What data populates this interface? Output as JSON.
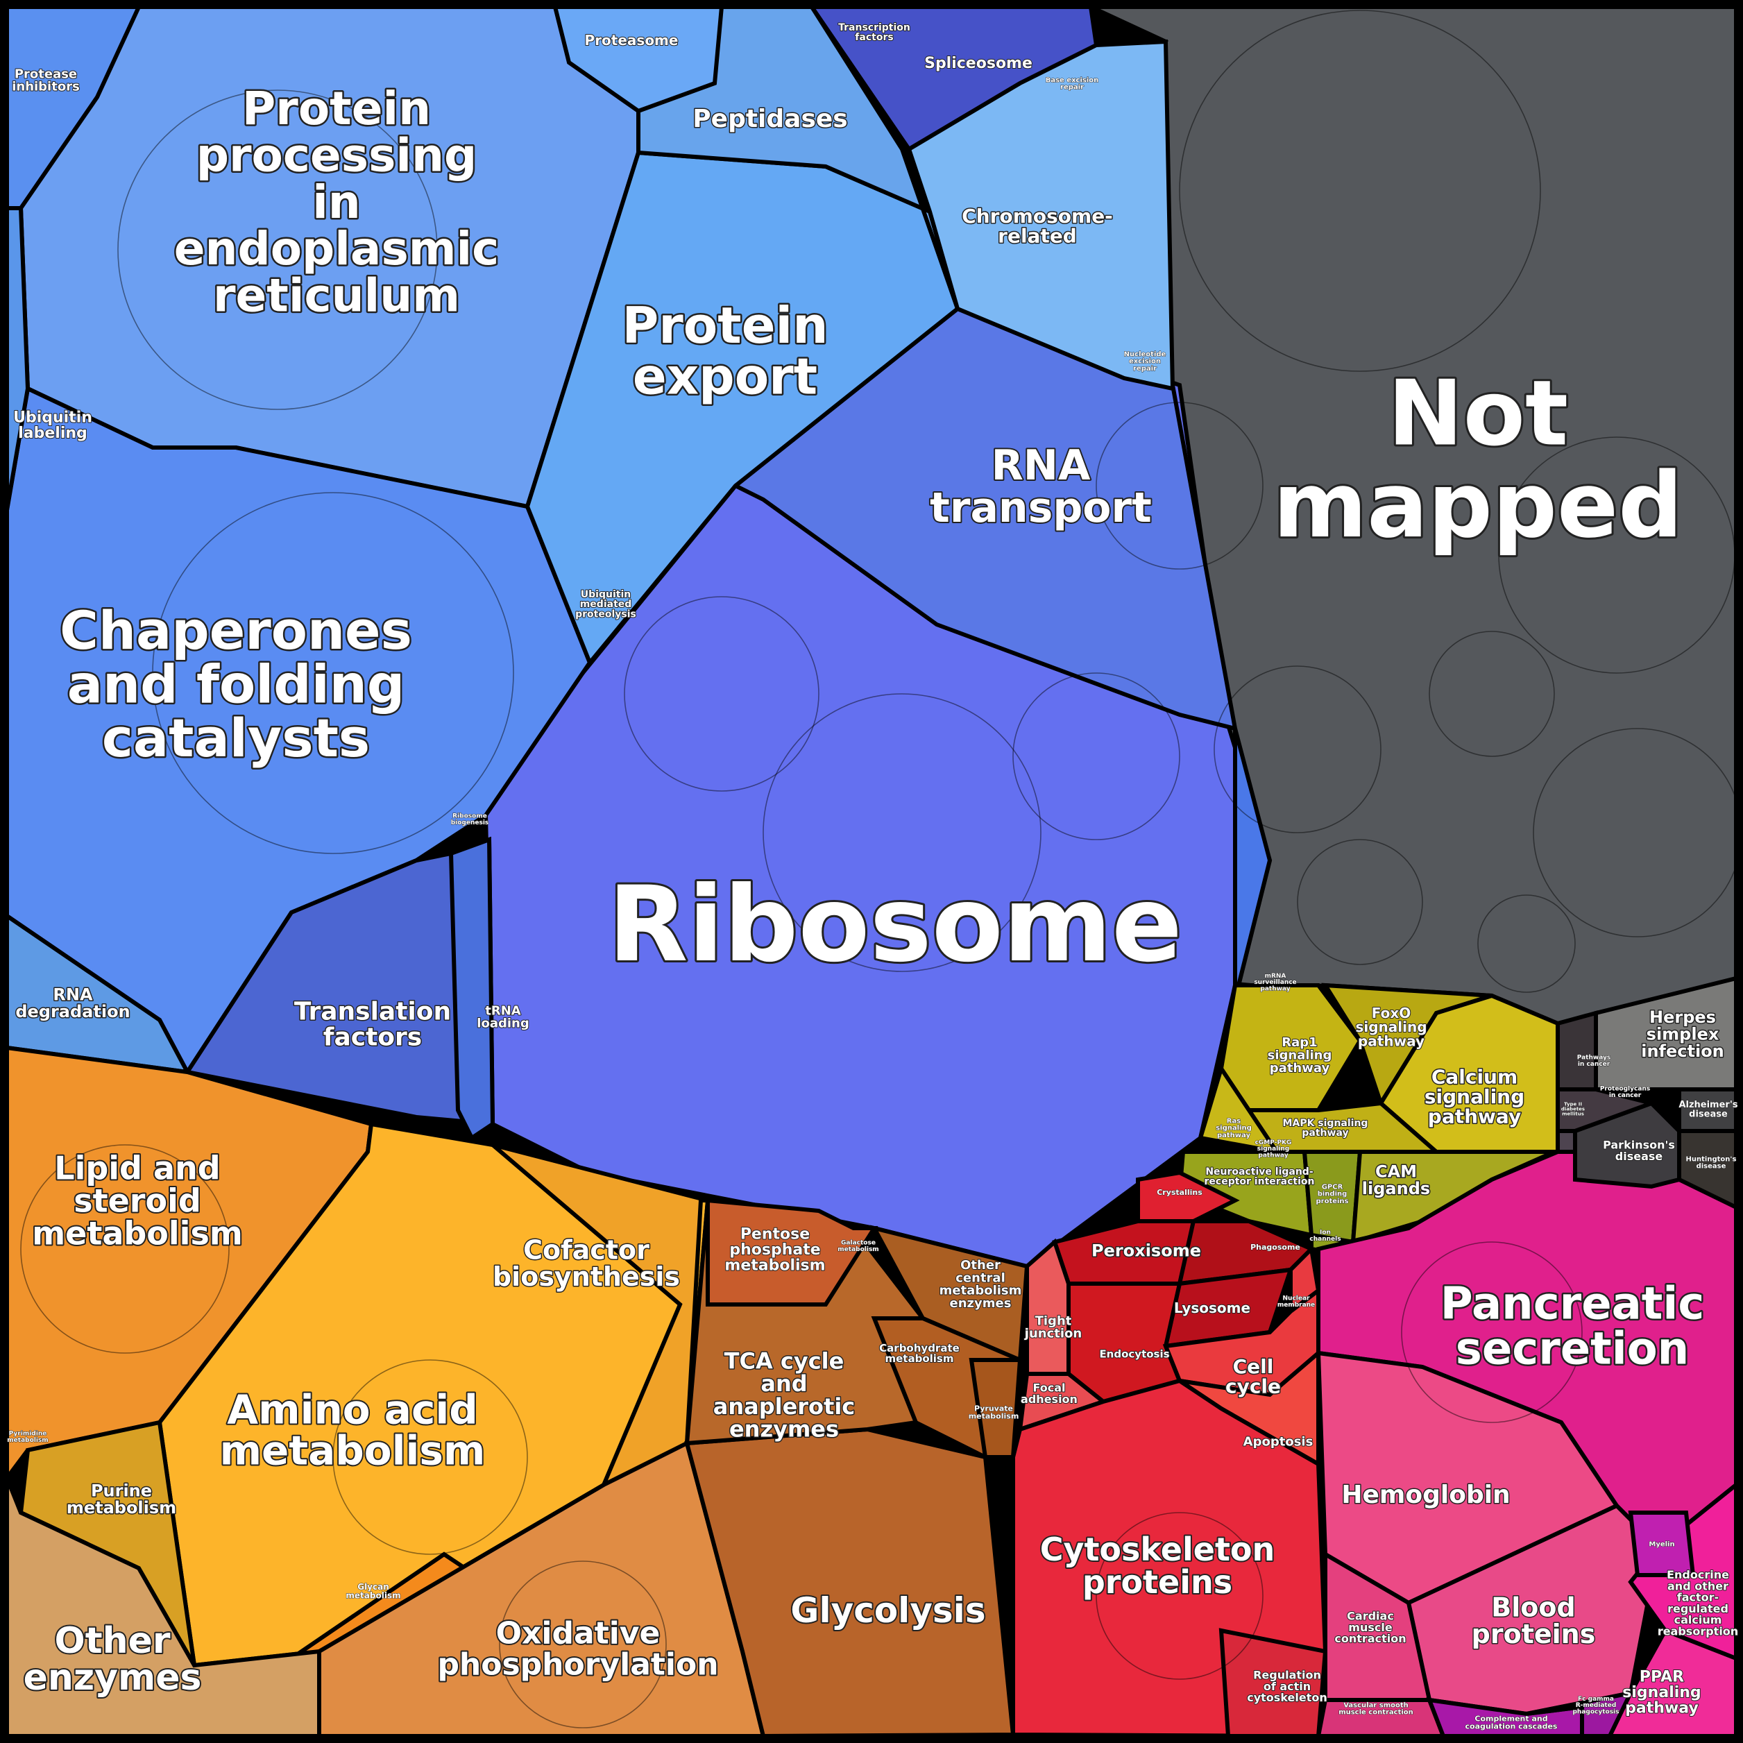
{
  "chart_data": {
    "type": "voronoi-treemap",
    "title": "",
    "colors": {
      "genetic_info": "#5b8def",
      "ribosome": "#6470f0",
      "not_mapped": "#55585c",
      "metabolism": "#f0a030",
      "signaling": "#c9b815",
      "cellular": "#d81f35",
      "organismal": "#e0208a",
      "disease": "#4a4448"
    },
    "cells": [
      {
        "id": "not-mapped",
        "label": "Not mapped",
        "color": "#55585c",
        "size": 40
      },
      {
        "id": "ribosome",
        "label": "Ribosome",
        "color": "#6470f0",
        "size": 34
      },
      {
        "id": "protein-processing",
        "label": "Protein processing in endoplasmic reticulum",
        "color": "#6c9ff2",
        "size": 22
      },
      {
        "id": "chaperones",
        "label": "Chaperones and folding catalysts",
        "color": "#5a8cf2",
        "size": 22
      },
      {
        "id": "protein-export",
        "label": "Protein export",
        "color": "#64a8f4",
        "size": 14
      },
      {
        "id": "rna-transport",
        "label": "RNA transport",
        "color": "#5a78e6",
        "size": 10
      },
      {
        "id": "peptidases",
        "label": "Peptidases",
        "color": "#68a4ec",
        "size": 6
      },
      {
        "id": "chromosome-related",
        "label": "Chromosome-related",
        "color": "#7cb8f4",
        "size": 6
      },
      {
        "id": "proteasome",
        "label": "Proteasome",
        "color": "#6aa8f6",
        "size": 3
      },
      {
        "id": "spliceosome",
        "label": "Spliceosome",
        "color": "#4652c8",
        "size": 3
      },
      {
        "id": "transcription-factors",
        "label": "Transcription factors",
        "color": "#3c46b8",
        "size": 1
      },
      {
        "id": "base-excision-repair",
        "label": "Base excision repair",
        "color": "#6aa0dc",
        "size": 1
      },
      {
        "id": "nucleotide-excision-repair",
        "label": "Nucleotide excision repair",
        "color": "#74a8e4",
        "size": 1
      },
      {
        "id": "protease-inhibitors",
        "label": "Protease inhibitors",
        "color": "#5a90f0",
        "size": 2
      },
      {
        "id": "ubiquitin-labeling",
        "label": "Ubiquitin labeling",
        "color": "#5a96ea",
        "size": 2
      },
      {
        "id": "ubiquitin-mediated-proteolysis",
        "label": "Ubiquitin mediated proteolysis",
        "color": "#64a0dc",
        "size": 1
      },
      {
        "id": "rna-degradation",
        "label": "RNA degradation",
        "color": "#5e9ae4",
        "size": 4
      },
      {
        "id": "translation-factors",
        "label": "Translation factors",
        "color": "#4c66d2",
        "size": 6
      },
      {
        "id": "trna-loading",
        "label": "tRNA loading",
        "color": "#4a70dc",
        "size": 3
      },
      {
        "id": "ribosome-biogenesis",
        "label": "Ribosome biogenesis",
        "color": "#4a6ad8",
        "size": 1
      },
      {
        "id": "mrna-surveillance",
        "label": "mRNA surveillance pathway",
        "color": "#4a78e8",
        "size": 1
      },
      {
        "id": "lipid-steroid",
        "label": "Lipid and steroid metabolism",
        "color": "#f0932c",
        "size": 14
      },
      {
        "id": "amino-acid",
        "label": "Amino acid metabolism",
        "color": "#fdb42a",
        "size": 14
      },
      {
        "id": "cofactor",
        "label": "Cofactor biosynthesis",
        "color": "#f0a228",
        "size": 8
      },
      {
        "id": "purine",
        "label": "Purine metabolism",
        "color": "#d8a024",
        "size": 4
      },
      {
        "id": "pyrimidine",
        "label": "Pyrimidine metabolism",
        "color": "#d08a24",
        "size": 1
      },
      {
        "id": "glycan",
        "label": "Glycan metabolism",
        "color": "#f48a1c",
        "size": 2
      },
      {
        "id": "other-enzymes",
        "label": "Other enzymes",
        "color": "#d4a064",
        "size": 8
      },
      {
        "id": "oxidative-phosphorylation",
        "label": "Oxidative phosphorylation",
        "color": "#e08c44",
        "size": 14
      },
      {
        "id": "glycolysis",
        "label": "Glycolysis",
        "color": "#b8642a",
        "size": 9
      },
      {
        "id": "tca-cycle",
        "label": "TCA cycle and anaplerotic enzymes",
        "color": "#b8682a",
        "size": 7
      },
      {
        "id": "pentose-phosphate",
        "label": "Pentose phosphate metabolism",
        "color": "#c85c2c",
        "size": 2
      },
      {
        "id": "galactose",
        "label": "Galactose metabolism",
        "color": "#b86c2a",
        "size": 1
      },
      {
        "id": "other-central",
        "label": "Other central metabolism enzymes",
        "color": "#aa5e22",
        "size": 2
      },
      {
        "id": "carbohydrate",
        "label": "Carbohydrate metabolism",
        "color": "#b25e22",
        "size": 2
      },
      {
        "id": "pyruvate",
        "label": "Pyruvate metabolism",
        "color": "#a6561c",
        "size": 1
      },
      {
        "id": "rap1",
        "label": "Rap1 signaling pathway",
        "color": "#c4b414",
        "size": 2
      },
      {
        "id": "foxo",
        "label": "FoxO signaling pathway",
        "color": "#b8a812",
        "size": 2
      },
      {
        "id": "calcium",
        "label": "Calcium signaling pathway",
        "color": "#d2be1a",
        "size": 3
      },
      {
        "id": "mapk",
        "label": "MAPK signaling pathway",
        "color": "#c0b016",
        "size": 2
      },
      {
        "id": "ras",
        "label": "Ras signaling pathway",
        "color": "#c8b818",
        "size": 1
      },
      {
        "id": "cgmp-pkg",
        "label": "cGMP-PKG signaling pathway",
        "color": "#c0ae16",
        "size": 1
      },
      {
        "id": "neuroactive",
        "label": "Neuroactive ligand-receptor interaction",
        "color": "#98a41c",
        "size": 2
      },
      {
        "id": "gpcr",
        "label": "GPCR binding proteins",
        "color": "#8a9a1c",
        "size": 1
      },
      {
        "id": "cam-ligands",
        "label": "CAM ligands",
        "color": "#a8a820",
        "size": 2
      },
      {
        "id": "ion-channels",
        "label": "Ion channels",
        "color": "#90a01c",
        "size": 1
      },
      {
        "id": "peroxisome",
        "label": "Peroxisome",
        "color": "#c4121e",
        "size": 3
      },
      {
        "id": "lysosome",
        "label": "Lysosome",
        "color": "#b8101c",
        "size": 3
      },
      {
        "id": "endocytosis",
        "label": "Endocytosis",
        "color": "#d01820",
        "size": 2
      },
      {
        "id": "phagosome",
        "label": "Phagosome",
        "color": "#b01018",
        "size": 1
      },
      {
        "id": "crystallins",
        "label": "Crystallins",
        "color": "#e02030",
        "size": 1
      },
      {
        "id": "cell-cycle",
        "label": "Cell cycle",
        "color": "#ea3a3e",
        "size": 2
      },
      {
        "id": "apoptosis",
        "label": "Apoptosis",
        "color": "#f04840",
        "size": 2
      },
      {
        "id": "nuclear-membrane",
        "label": "Nuclear membrane",
        "color": "#e83a40",
        "size": 1
      },
      {
        "id": "tight-junction",
        "label": "Tight junction",
        "color": "#ea5a5c",
        "size": 2
      },
      {
        "id": "focal-adhesion",
        "label": "Focal adhesion",
        "color": "#e84c52",
        "size": 1
      },
      {
        "id": "cytoskeleton",
        "label": "Cytoskeleton proteins",
        "color": "#e8283c",
        "size": 9
      },
      {
        "id": "regulation-actin",
        "label": "Regulation of actin cytoskeleton",
        "color": "#d8283a",
        "size": 2
      },
      {
        "id": "pancreatic-secretion",
        "label": "Pancreatic secretion",
        "color": "#e0208c",
        "size": 14
      },
      {
        "id": "hemoglobin",
        "label": "Hemoglobin",
        "color": "#ec4a86",
        "size": 6
      },
      {
        "id": "blood-proteins",
        "label": "Blood proteins",
        "color": "#e84a88",
        "size": 6
      },
      {
        "id": "cardiac-muscle",
        "label": "Cardiac muscle contraction",
        "color": "#e4407e",
        "size": 2
      },
      {
        "id": "vascular-smooth-muscle",
        "label": "Vascular smooth muscle contraction",
        "color": "#d83478",
        "size": 1
      },
      {
        "id": "complement",
        "label": "Complement and coagulation cascades",
        "color": "#a818a8",
        "size": 1
      },
      {
        "id": "fc-gamma",
        "label": "Fc gamma R-mediated phagocytosis",
        "color": "#9c18a0",
        "size": 1
      },
      {
        "id": "ppar",
        "label": "PPAR signaling pathway",
        "color": "#f02c98",
        "size": 2
      },
      {
        "id": "endocrine",
        "label": "Endocrine and other factor-regulated calcium reabsorption",
        "color": "#f0209a",
        "size": 2
      },
      {
        "id": "myelin",
        "label": "Myelin",
        "color": "#c020b0",
        "size": 1
      },
      {
        "id": "herpes",
        "label": "Herpes simplex infection",
        "color": "#7a7a78",
        "size": 2
      },
      {
        "id": "alzheimers",
        "label": "Alzheimer's disease",
        "color": "#404042",
        "size": 1
      },
      {
        "id": "parkinsons",
        "label": "Parkinson's disease",
        "color": "#3e3c40",
        "size": 2
      },
      {
        "id": "huntingtons",
        "label": "Huntington's disease",
        "color": "#383430",
        "size": 1
      },
      {
        "id": "pathways-cancer",
        "label": "Pathways in cancer",
        "color": "#3a3438",
        "size": 1
      },
      {
        "id": "proteoglycans-cancer",
        "label": "Proteoglycans in cancer",
        "color": "#443a42",
        "size": 1
      },
      {
        "id": "type-i-diabetes",
        "label": "Type II diabetes mellitus",
        "color": "#4e4450",
        "size": 1
      }
    ]
  }
}
